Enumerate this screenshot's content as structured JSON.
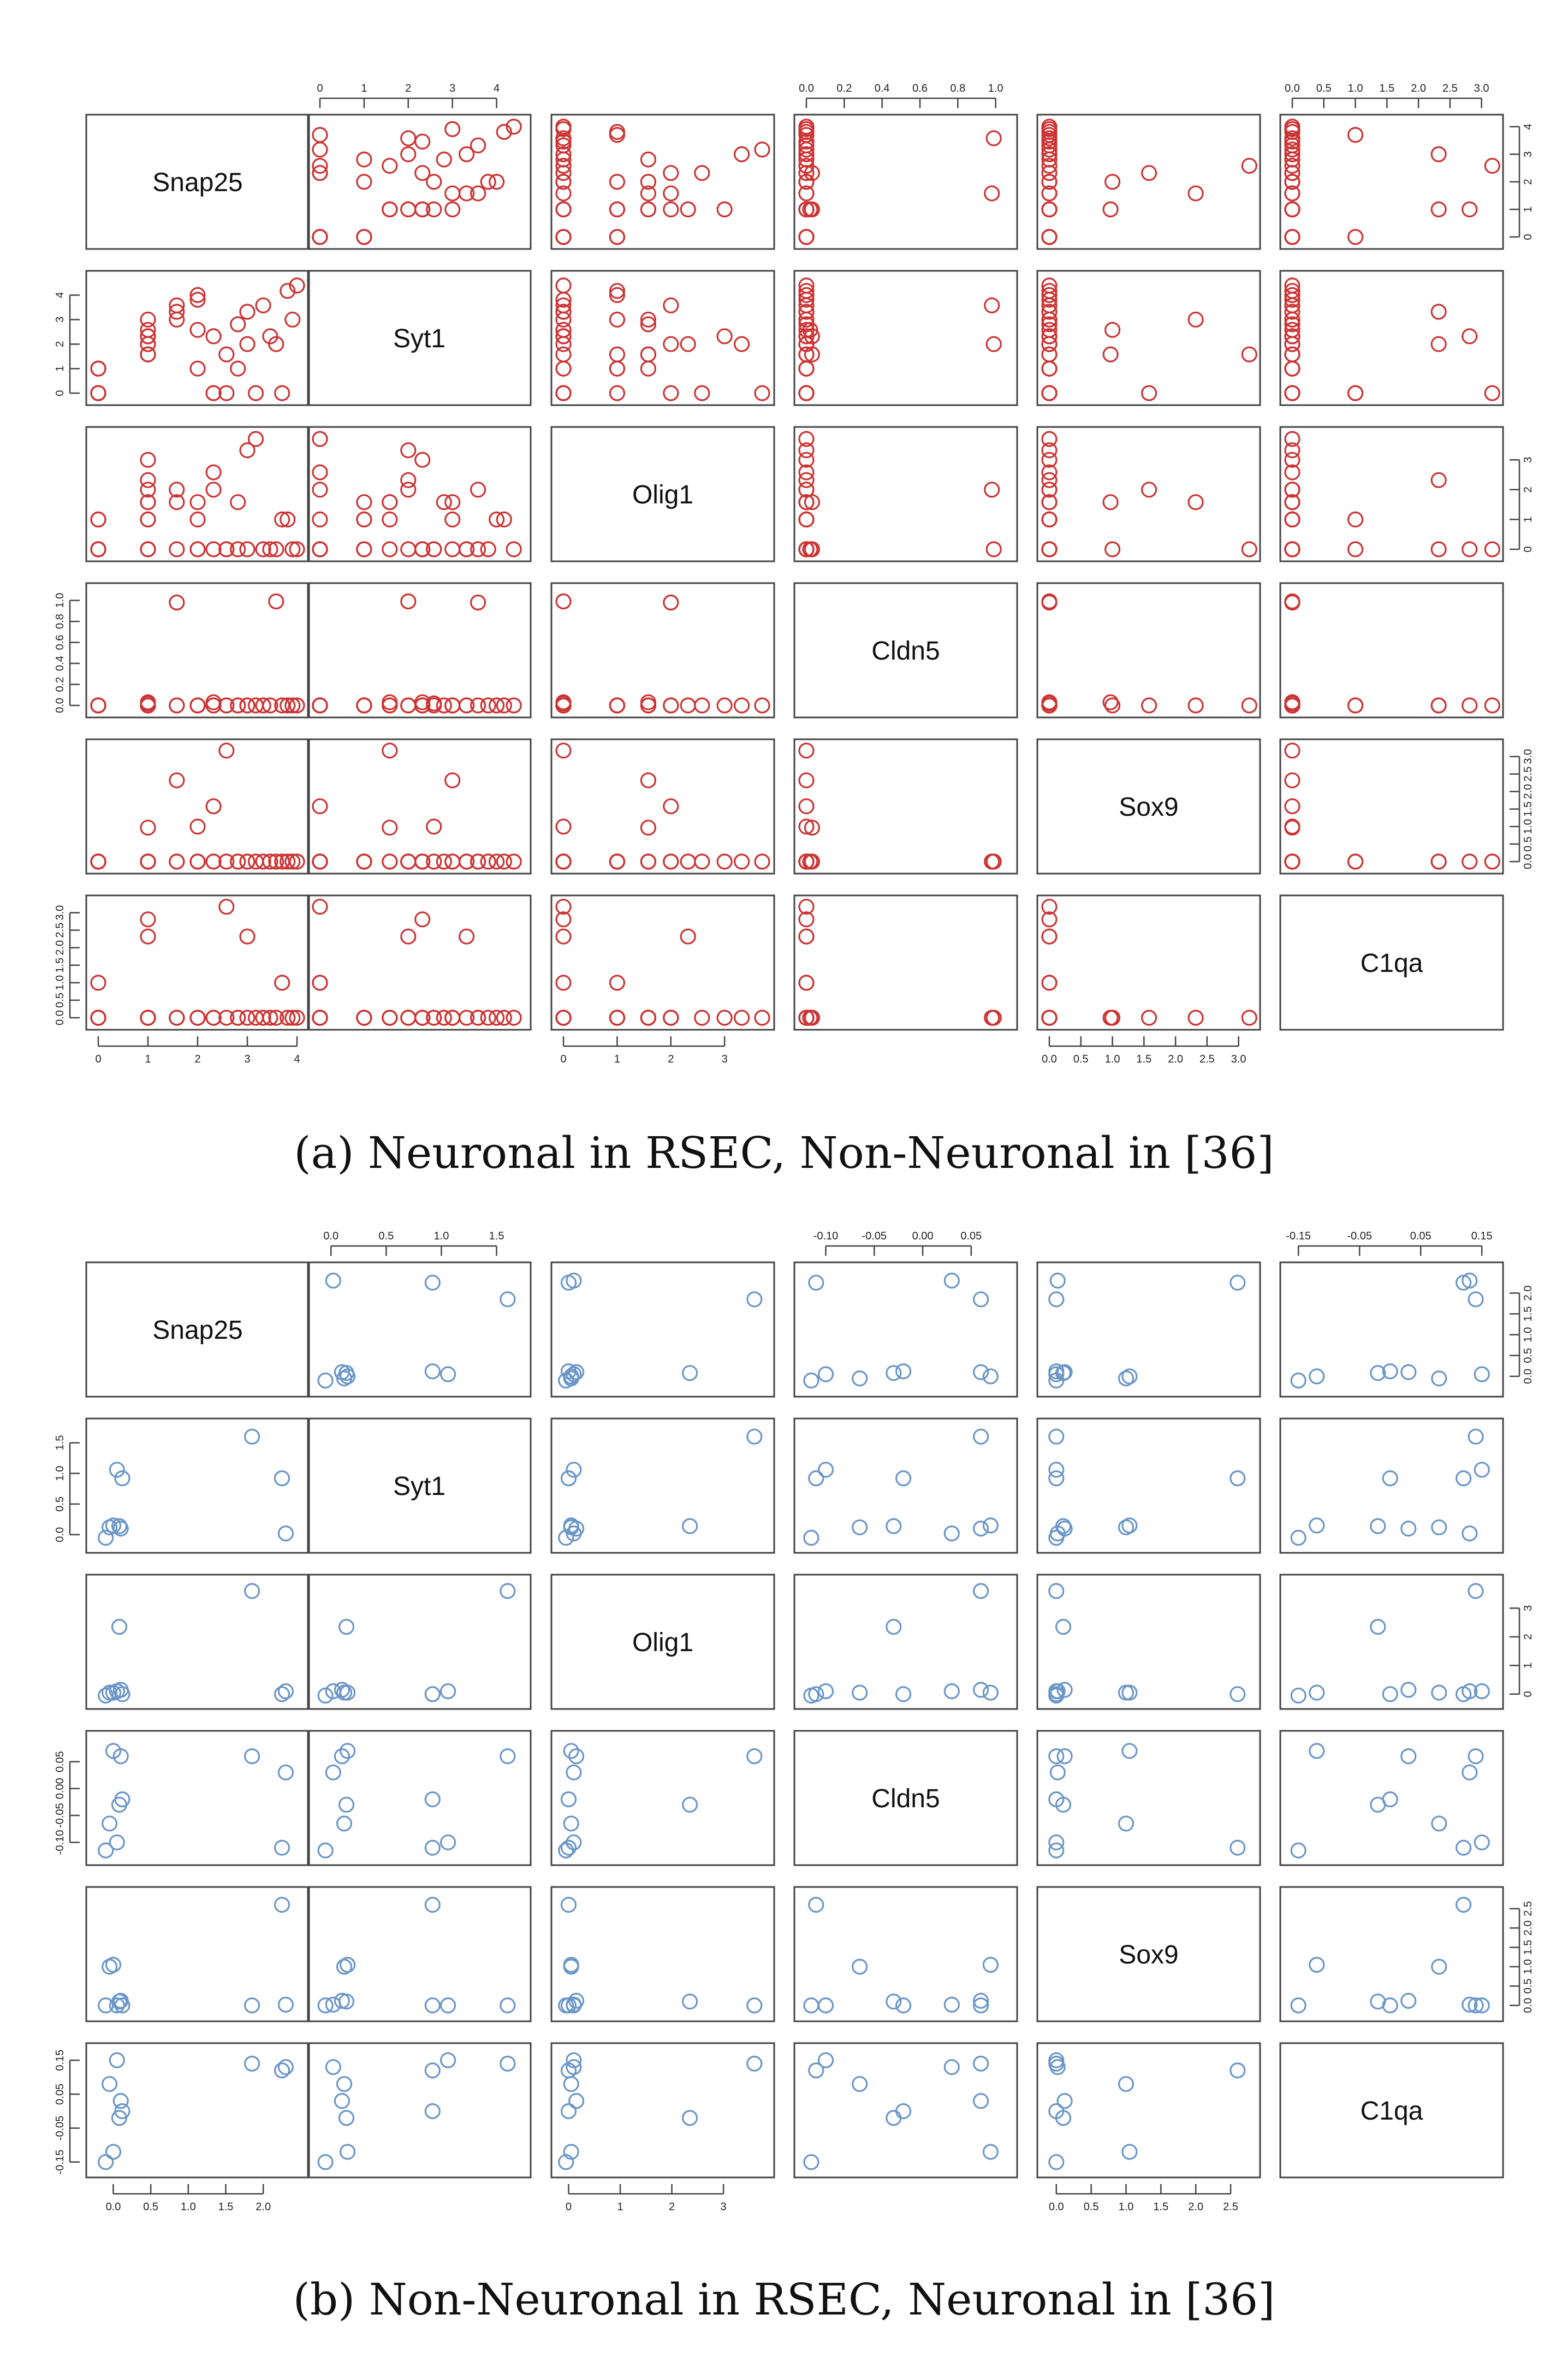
{
  "figure": {
    "variables": [
      "Snap25",
      "Syt1",
      "Olig1",
      "Cldn5",
      "Sox9",
      "C1qa"
    ],
    "panels": [
      {
        "caption": "(a) Neuronal in RSEC, Non-Neuronal in [36]",
        "color": "#cc3333",
        "chart_data": {
          "type": "scatter",
          "layout": "pairs-matrix",
          "variables": [
            "Snap25",
            "Syt1",
            "Olig1",
            "Cldn5",
            "Sox9",
            "C1qa"
          ],
          "ranges": [
            [
              0,
              4
            ],
            [
              0,
              4.5
            ],
            [
              0,
              3.7
            ],
            [
              0,
              1.05
            ],
            [
              0,
              3.15
            ],
            [
              0,
              3.15
            ]
          ],
          "tick_labels": [
            [
              "0",
              "1",
              "2",
              "3",
              "4"
            ],
            [
              "0",
              "1",
              "2",
              "3",
              "4"
            ],
            [
              "0",
              "1",
              "2",
              "3"
            ],
            [
              "0.0",
              "0.2",
              "0.4",
              "0.6",
              "0.8",
              "1.0"
            ],
            [
              "0.0",
              "0.5",
              "1.0",
              "1.5",
              "2.0",
              "2.5",
              "3.0"
            ],
            [
              "0.0",
              "0.5",
              "1.0",
              "1.5",
              "2.0",
              "2.5",
              "3.0"
            ]
          ],
          "data": {
            "Snap25": [
              0,
              0,
              0,
              0,
              0,
              0,
              0,
              0,
              1.0,
              1.0,
              1.0,
              1.0,
              1.0,
              1.0,
              1.0,
              1.0,
              1.0,
              1.0,
              1.58,
              1.58,
              1.58,
              2.0,
              2.0,
              2.0,
              2.0,
              2.32,
              2.32,
              2.32,
              2.58,
              2.58,
              2.81,
              2.81,
              3.0,
              3.0,
              3.17,
              3.32,
              3.46,
              3.58,
              3.7,
              3.81,
              3.91,
              4.0
            ],
            "Syt1": [
              0,
              0,
              0,
              0,
              0,
              1.0,
              1.0,
              1.0,
              1.58,
              1.58,
              1.58,
              2.0,
              2.0,
              2.32,
              2.32,
              2.32,
              2.58,
              3.0,
              3.0,
              3.32,
              3.58,
              3.81,
              4.0,
              2.58,
              1.0,
              0,
              2.32,
              0,
              0,
              1.58,
              2.81,
              1.0,
              2.0,
              3.32,
              0,
              3.58,
              2.32,
              2.0,
              0,
              4.17,
              3.0,
              4.39
            ],
            "Olig1": [
              0,
              0,
              0,
              0,
              0,
              0,
              1.0,
              1.0,
              1.0,
              1.58,
              1.58,
              2.0,
              2.32,
              3.0,
              0,
              0,
              0,
              1.0,
              1.58,
              0,
              2.0,
              0,
              1.0,
              0,
              1.58,
              2.0,
              0,
              2.58,
              0,
              0,
              1.58,
              0,
              3.32,
              0,
              3.7,
              0,
              0,
              0,
              1.0,
              1.0,
              0,
              0
            ],
            "Cldn5": [
              0,
              0,
              0,
              0,
              0,
              0,
              0,
              0,
              0,
              0,
              0.03,
              0,
              0,
              0,
              0,
              0,
              0.02,
              0,
              0,
              0,
              0.98,
              0,
              0,
              0,
              0,
              0,
              0.03,
              0,
              0,
              0,
              0,
              0,
              0,
              0,
              0,
              0,
              0,
              0.99,
              0,
              0,
              0,
              0
            ],
            "Sox9": [
              0,
              0,
              0,
              0,
              0,
              0,
              0,
              0,
              0,
              0,
              0.97,
              0,
              0,
              0,
              0,
              0,
              0,
              0,
              2.32,
              0,
              0,
              0,
              0,
              1.0,
              0,
              1.58,
              0,
              0,
              0,
              3.17,
              0,
              0,
              0,
              0,
              0,
              0,
              0,
              0,
              0,
              0,
              0,
              0
            ],
            "C1qa": [
              0,
              0,
              0,
              0,
              1.0,
              0,
              0,
              0,
              0,
              0,
              0,
              0,
              2.32,
              0,
              0,
              2.81,
              0,
              0,
              0,
              0,
              0,
              0,
              0,
              0,
              0,
              0,
              0,
              0,
              3.17,
              0,
              0,
              0,
              0,
              2.32,
              0,
              0,
              0,
              0,
              1.0,
              0,
              0,
              0
            ]
          },
          "point_style": "open-circle",
          "color": "#cc3333",
          "grid": false,
          "title": "",
          "xlabel": "",
          "ylabel": ""
        }
      },
      {
        "caption": "(b) Non-Neuronal in RSEC, Neuronal in [36]",
        "color": "#6a96c8",
        "chart_data": {
          "type": "scatter",
          "layout": "pairs-matrix",
          "variables": [
            "Snap25",
            "Syt1",
            "Olig1",
            "Cldn5",
            "Sox9",
            "C1qa"
          ],
          "ranges": [
            [
              -0.2,
              2.45
            ],
            [
              -0.1,
              1.7
            ],
            [
              -0.1,
              3.75
            ],
            [
              -0.12,
              0.085
            ],
            [
              -0.1,
              2.75
            ],
            [
              -0.16,
              0.165
            ]
          ],
          "tick_labels": [
            [
              "0.0",
              "0.5",
              "1.0",
              "1.5",
              "2.0"
            ],
            [
              "0.0",
              "0.5",
              "1.0",
              "1.5"
            ],
            [
              "0",
              "1",
              "2",
              "3"
            ],
            [
              "-0.10",
              "-0.05",
              "0.00",
              "0.05"
            ],
            [
              "0.0",
              "0.5",
              "1.0",
              "1.5",
              "2.0",
              "2.5"
            ],
            [
              "-0.15",
              "-0.05",
              "0.05",
              "0.15"
            ]
          ],
          "data": {
            "Snap25": [
              2.3,
              2.25,
              1.85,
              0.0,
              0.05,
              0.08,
              0.1,
              0.12,
              -0.1,
              -0.05
            ],
            "Syt1": [
              0.02,
              0.92,
              1.6,
              0.15,
              1.06,
              0.14,
              0.1,
              0.92,
              -0.05,
              0.12
            ],
            "Olig1": [
              0.1,
              0.0,
              3.6,
              0.05,
              0.1,
              2.35,
              0.15,
              0.0,
              -0.05,
              0.05
            ],
            "Cldn5": [
              0.03,
              -0.11,
              0.06,
              0.07,
              -0.1,
              -0.03,
              0.06,
              -0.02,
              -0.115,
              -0.065
            ],
            "Sox9": [
              0.02,
              2.6,
              0.0,
              1.05,
              0.0,
              0.1,
              0.12,
              0.0,
              0.0,
              1.0
            ],
            "C1qa": [
              0.13,
              0.12,
              0.14,
              -0.12,
              0.15,
              -0.02,
              0.03,
              0.0,
              -0.15,
              0.08
            ]
          },
          "point_style": "open-circle",
          "color": "#6a96c8",
          "grid": false,
          "title": "",
          "xlabel": "",
          "ylabel": ""
        }
      }
    ]
  }
}
